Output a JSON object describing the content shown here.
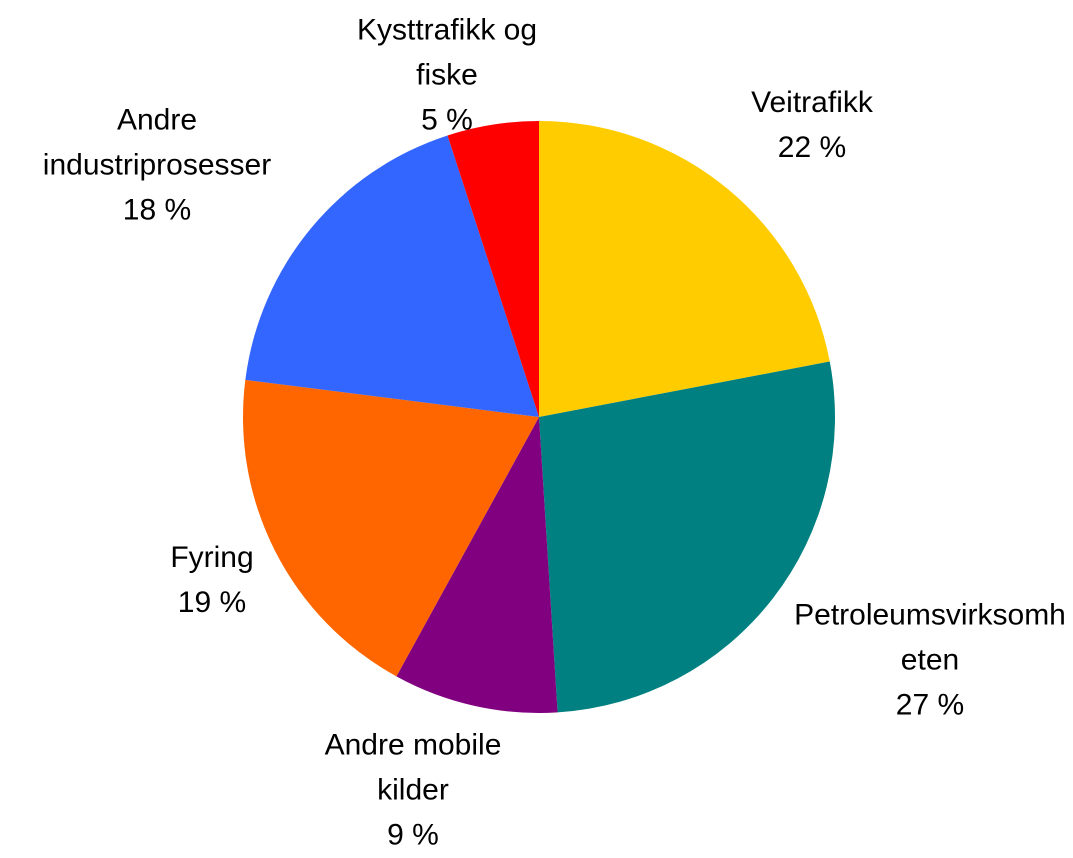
{
  "chart_data": {
    "type": "pie",
    "categories": [
      "Veitrafikk",
      "Petroleumsvirksomheten",
      "Andre mobile kilder",
      "Fyring",
      "Andre industriprosesser",
      "Kysttrafikk og fiske"
    ],
    "values": [
      22,
      27,
      9,
      19,
      18,
      5
    ],
    "value_labels": [
      "22 %",
      "27 %",
      "9 %",
      "19 %",
      "18 %",
      "5 %"
    ],
    "colors": [
      "#FFCC00",
      "#008080",
      "#800080",
      "#FF6600",
      "#3366FF",
      "#FF0000"
    ]
  }
}
